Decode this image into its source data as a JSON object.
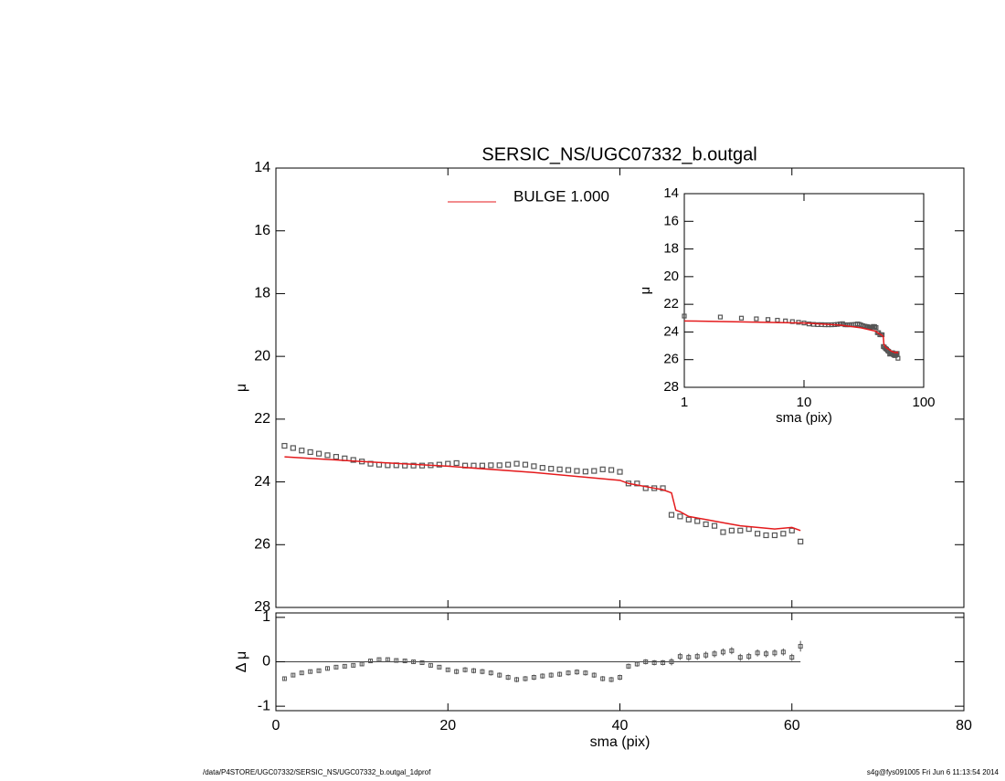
{
  "chart_data": [
    {
      "type": "scatter",
      "title": "SERSIC_NS/UGC07332_b.outgal",
      "ylabel": "μ",
      "xlim": [
        0,
        80
      ],
      "xticks": [
        0,
        20,
        40,
        60,
        80
      ],
      "ylim": [
        28,
        14
      ],
      "yticks": [
        14,
        16,
        18,
        20,
        22,
        24,
        26,
        28
      ],
      "legend": "top",
      "series": [
        {
          "marker": "square",
          "color": "#555555",
          "x": [
            1,
            2,
            3,
            4,
            5,
            6,
            7,
            8,
            9,
            10,
            11,
            12,
            13,
            14,
            15,
            16,
            17,
            18,
            19,
            20,
            21,
            22,
            23,
            24,
            25,
            26,
            27,
            28,
            29,
            30,
            31,
            32,
            33,
            34,
            35,
            36,
            37,
            38,
            39,
            40,
            41,
            42,
            43,
            44,
            45,
            46,
            47,
            48,
            49,
            50,
            51,
            52,
            53,
            54,
            55,
            56,
            57,
            58,
            59,
            60,
            61
          ],
          "values": [
            22.85,
            22.92,
            23.0,
            23.05,
            23.1,
            23.15,
            23.2,
            23.25,
            23.3,
            23.35,
            23.42,
            23.45,
            23.47,
            23.47,
            23.48,
            23.48,
            23.48,
            23.47,
            23.45,
            23.42,
            23.4,
            23.48,
            23.48,
            23.48,
            23.47,
            23.47,
            23.45,
            23.42,
            23.45,
            23.5,
            23.55,
            23.58,
            23.6,
            23.62,
            23.65,
            23.67,
            23.65,
            23.6,
            23.62,
            23.68,
            24.05,
            24.05,
            24.2,
            24.2,
            24.2,
            25.05,
            25.1,
            25.2,
            25.25,
            25.35,
            25.4,
            25.6,
            25.55,
            25.55,
            25.5,
            25.65,
            25.7,
            25.7,
            25.65,
            25.55,
            25.9
          ]
        },
        {
          "name": "BULGE  1.000",
          "marker": "line",
          "color": "#e41a1c",
          "x": [
            1,
            10,
            20,
            30,
            40,
            41,
            42,
            44,
            45,
            46,
            46.5,
            47,
            48,
            50,
            52,
            54,
            56,
            58,
            60,
            61
          ],
          "values": [
            23.2,
            23.35,
            23.5,
            23.7,
            23.95,
            24.05,
            24.1,
            24.2,
            24.25,
            24.35,
            24.9,
            24.95,
            25.1,
            25.2,
            25.3,
            25.4,
            25.45,
            25.5,
            25.45,
            25.55
          ]
        }
      ]
    },
    {
      "type": "errorbar",
      "xlabel": "sma (pix)",
      "ylabel": "Δ μ",
      "xlim": [
        0,
        80
      ],
      "xticks": [
        0,
        20,
        40,
        60,
        80
      ],
      "ylim": [
        -1.1,
        1.1
      ],
      "yticks": [
        -1,
        0,
        1
      ],
      "color": "#555555",
      "values": [
        -0.38,
        -0.3,
        -0.25,
        -0.22,
        -0.2,
        -0.15,
        -0.12,
        -0.1,
        -0.08,
        -0.05,
        0.02,
        0.05,
        0.05,
        0.03,
        0.02,
        0.0,
        -0.02,
        -0.08,
        -0.12,
        -0.18,
        -0.22,
        -0.18,
        -0.2,
        -0.22,
        -0.25,
        -0.3,
        -0.35,
        -0.4,
        -0.38,
        -0.35,
        -0.32,
        -0.3,
        -0.28,
        -0.25,
        -0.23,
        -0.25,
        -0.3,
        -0.38,
        -0.4,
        -0.35,
        -0.1,
        -0.05,
        0.0,
        -0.02,
        -0.02,
        0.0,
        0.12,
        0.1,
        0.12,
        0.15,
        0.18,
        0.22,
        0.25,
        0.1,
        0.12,
        0.2,
        0.18,
        0.2,
        0.22,
        0.1,
        0.35
      ],
      "errors": [
        0.04,
        0.04,
        0.04,
        0.04,
        0.04,
        0.04,
        0.04,
        0.04,
        0.04,
        0.04,
        0.04,
        0.04,
        0.04,
        0.04,
        0.04,
        0.04,
        0.04,
        0.04,
        0.04,
        0.04,
        0.06,
        0.06,
        0.06,
        0.06,
        0.06,
        0.06,
        0.06,
        0.06,
        0.06,
        0.06,
        0.06,
        0.06,
        0.06,
        0.06,
        0.06,
        0.06,
        0.06,
        0.06,
        0.06,
        0.06,
        0.06,
        0.06,
        0.06,
        0.06,
        0.06,
        0.08,
        0.08,
        0.08,
        0.08,
        0.08,
        0.08,
        0.08,
        0.08,
        0.08,
        0.08,
        0.08,
        0.08,
        0.08,
        0.08,
        0.08,
        0.12
      ]
    },
    {
      "type": "inset",
      "xlabel": "sma (pix)",
      "ylabel": "μ",
      "log_x": true,
      "xlim": [
        1,
        100
      ],
      "xticks": [
        1,
        10,
        100
      ],
      "ylim": [
        28,
        14
      ],
      "yticks": [
        14,
        16,
        18,
        20,
        22,
        24,
        26,
        28
      ]
    }
  ],
  "footer": {
    "left": "/data/P4STORE/UGC07332/SERSIC_NS/UGC07332_b.outgal_1dprof",
    "right": "s4g@fys091005  Fri Jun  6 11:13:54 2014"
  }
}
